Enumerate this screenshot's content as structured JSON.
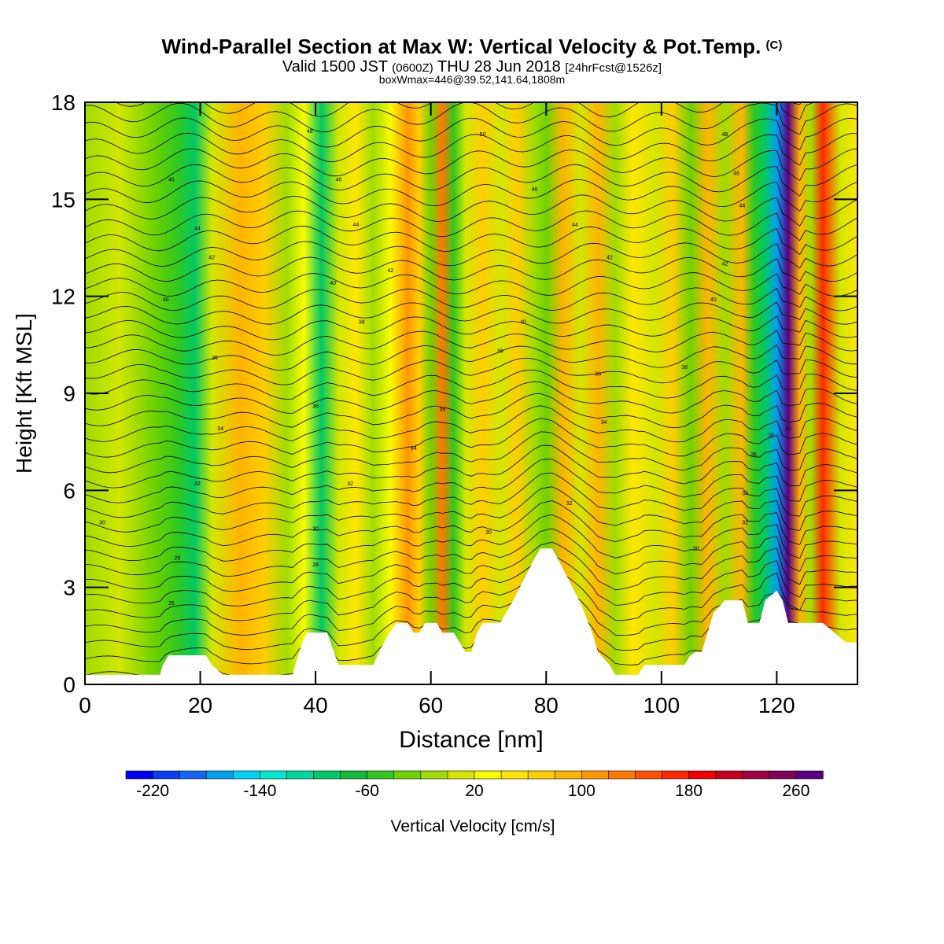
{
  "header": {
    "title": "Wind-Parallel Section at Max W: Vertical Velocity & Pot.Temp.",
    "title_mark": "(C)",
    "valid_prefix": "Valid 1500 JST",
    "valid_utc": "(0600Z)",
    "valid_date": "THU 28 Jun 2018",
    "forecast": "[24hrFcst@1526z]",
    "boxwmax": "boxWmax=446@39.52,141.64,1808m"
  },
  "chart_data": {
    "type": "heatmap",
    "xlabel": "Distance [nm]",
    "ylabel": "Height [Kft MSL]",
    "xlim": [
      0,
      134
    ],
    "ylim": [
      0,
      18
    ],
    "x_ticks": [
      0,
      20,
      40,
      60,
      80,
      100,
      120
    ],
    "y_ticks": [
      0,
      3,
      6,
      9,
      12,
      15,
      18
    ],
    "colorbar": {
      "label": "Vertical Velocity [cm/s]",
      "tick_labels": [
        "-220",
        "-140",
        "-60",
        "20",
        "100",
        "180",
        "260"
      ],
      "bin_colors": [
        "#0000f0",
        "#0a3cf5",
        "#1464f5",
        "#00a0f0",
        "#00d2f5",
        "#00e8d0",
        "#00d89a",
        "#00c864",
        "#14b83c",
        "#32c81e",
        "#6ed200",
        "#a0dc00",
        "#d2e600",
        "#fafa00",
        "#ffe600",
        "#ffcd00",
        "#ffb400",
        "#ff9600",
        "#ff7800",
        "#ff5000",
        "#ff2800",
        "#f00000",
        "#c80020",
        "#a00040",
        "#80005a",
        "#5a0082"
      ]
    },
    "field_profile": [
      {
        "x": 0,
        "w": -40
      },
      {
        "x": 6,
        "w": -20
      },
      {
        "x": 12,
        "w": -50
      },
      {
        "x": 16,
        "w": -70
      },
      {
        "x": 19,
        "w": -120
      },
      {
        "x": 22,
        "w": -20
      },
      {
        "x": 27,
        "w": 70
      },
      {
        "x": 31,
        "w": 40
      },
      {
        "x": 35,
        "w": -40
      },
      {
        "x": 38,
        "w": 10
      },
      {
        "x": 41,
        "w": -110
      },
      {
        "x": 44,
        "w": -20
      },
      {
        "x": 47,
        "w": 20
      },
      {
        "x": 50,
        "w": -40
      },
      {
        "x": 53,
        "w": 10
      },
      {
        "x": 56,
        "w": 90
      },
      {
        "x": 58,
        "w": 40
      },
      {
        "x": 60,
        "w": -50
      },
      {
        "x": 62,
        "w": 110
      },
      {
        "x": 64,
        "w": -70
      },
      {
        "x": 66,
        "w": -20
      },
      {
        "x": 69,
        "w": 50
      },
      {
        "x": 72,
        "w": -10
      },
      {
        "x": 75,
        "w": 40
      },
      {
        "x": 78,
        "w": -30
      },
      {
        "x": 80,
        "w": -60
      },
      {
        "x": 83,
        "w": 60
      },
      {
        "x": 86,
        "w": -10
      },
      {
        "x": 89,
        "w": 70
      },
      {
        "x": 92,
        "w": -40
      },
      {
        "x": 95,
        "w": 30
      },
      {
        "x": 99,
        "w": -20
      },
      {
        "x": 102,
        "w": 40
      },
      {
        "x": 105,
        "w": -50
      },
      {
        "x": 108,
        "w": 70
      },
      {
        "x": 111,
        "w": -40
      },
      {
        "x": 114,
        "w": 60
      },
      {
        "x": 116,
        "w": -80
      },
      {
        "x": 118,
        "w": -120
      },
      {
        "x": 120,
        "w": -190
      },
      {
        "x": 122,
        "w": 300
      },
      {
        "x": 124,
        "w": 60
      },
      {
        "x": 126,
        "w": -30
      },
      {
        "x": 128,
        "w": 140
      },
      {
        "x": 131,
        "w": -20
      },
      {
        "x": 134,
        "w": 20
      }
    ],
    "terrain": [
      {
        "x": 0,
        "h": 0.3
      },
      {
        "x": 13,
        "h": 0.3
      },
      {
        "x": 13.5,
        "h": 0.6
      },
      {
        "x": 14.5,
        "h": 0.9
      },
      {
        "x": 21,
        "h": 0.9
      },
      {
        "x": 22,
        "h": 0.6
      },
      {
        "x": 24,
        "h": 0.3
      },
      {
        "x": 36,
        "h": 0.3
      },
      {
        "x": 36.5,
        "h": 0.6
      },
      {
        "x": 37.5,
        "h": 1.2
      },
      {
        "x": 38.5,
        "h": 1.6
      },
      {
        "x": 42,
        "h": 1.6
      },
      {
        "x": 44,
        "h": 0.6
      },
      {
        "x": 50,
        "h": 0.6
      },
      {
        "x": 51,
        "h": 1.0
      },
      {
        "x": 52.5,
        "h": 1.5
      },
      {
        "x": 54,
        "h": 1.9
      },
      {
        "x": 56,
        "h": 1.9
      },
      {
        "x": 57,
        "h": 1.6
      },
      {
        "x": 58,
        "h": 1.6
      },
      {
        "x": 59,
        "h": 1.9
      },
      {
        "x": 61,
        "h": 1.9
      },
      {
        "x": 62,
        "h": 1.6
      },
      {
        "x": 64,
        "h": 1.6
      },
      {
        "x": 66,
        "h": 1.0
      },
      {
        "x": 67,
        "h": 1.0
      },
      {
        "x": 68,
        "h": 1.6
      },
      {
        "x": 69,
        "h": 1.9
      },
      {
        "x": 72,
        "h": 1.9
      },
      {
        "x": 74,
        "h": 2.5
      },
      {
        "x": 76,
        "h": 3.2
      },
      {
        "x": 78,
        "h": 3.9
      },
      {
        "x": 79,
        "h": 4.2
      },
      {
        "x": 81,
        "h": 4.2
      },
      {
        "x": 82,
        "h": 3.9
      },
      {
        "x": 84,
        "h": 3.2
      },
      {
        "x": 86,
        "h": 2.5
      },
      {
        "x": 88,
        "h": 1.6
      },
      {
        "x": 89,
        "h": 1.0
      },
      {
        "x": 91,
        "h": 0.6
      },
      {
        "x": 92,
        "h": 0.3
      },
      {
        "x": 96,
        "h": 0.3
      },
      {
        "x": 97,
        "h": 0.6
      },
      {
        "x": 104,
        "h": 0.6
      },
      {
        "x": 105,
        "h": 0.9
      },
      {
        "x": 106,
        "h": 1.0
      },
      {
        "x": 107,
        "h": 1.0
      },
      {
        "x": 108,
        "h": 1.6
      },
      {
        "x": 109,
        "h": 2.2
      },
      {
        "x": 111,
        "h": 2.6
      },
      {
        "x": 114,
        "h": 2.6
      },
      {
        "x": 115,
        "h": 1.9
      },
      {
        "x": 117,
        "h": 1.9
      },
      {
        "x": 118,
        "h": 2.6
      },
      {
        "x": 120,
        "h": 2.9
      },
      {
        "x": 121,
        "h": 2.6
      },
      {
        "x": 122,
        "h": 1.9
      },
      {
        "x": 128,
        "h": 1.9
      },
      {
        "x": 130,
        "h": 1.6
      },
      {
        "x": 132,
        "h": 1.3
      },
      {
        "x": 134,
        "h": 1.3
      }
    ],
    "contour_labels": [
      {
        "x": 3,
        "y": 5.0,
        "text": "30"
      },
      {
        "x": 16,
        "y": 3.9,
        "text": "28"
      },
      {
        "x": 15,
        "y": 2.5,
        "text": "26"
      },
      {
        "x": 19.5,
        "y": 6.2,
        "text": "32"
      },
      {
        "x": 23.5,
        "y": 7.9,
        "text": "34"
      },
      {
        "x": 22.5,
        "y": 10.1,
        "text": "36"
      },
      {
        "x": 14,
        "y": 11.9,
        "text": "40"
      },
      {
        "x": 22,
        "y": 13.2,
        "text": "42"
      },
      {
        "x": 19.5,
        "y": 14.1,
        "text": "44"
      },
      {
        "x": 15,
        "y": 15.6,
        "text": "46"
      },
      {
        "x": 39,
        "y": 17.1,
        "text": "48"
      },
      {
        "x": 44,
        "y": 15.6,
        "text": "46"
      },
      {
        "x": 47,
        "y": 14.2,
        "text": "44"
      },
      {
        "x": 43,
        "y": 12.4,
        "text": "40"
      },
      {
        "x": 53,
        "y": 12.8,
        "text": "42"
      },
      {
        "x": 48,
        "y": 11.2,
        "text": "38"
      },
      {
        "x": 40,
        "y": 8.6,
        "text": "36"
      },
      {
        "x": 46,
        "y": 6.2,
        "text": "32"
      },
      {
        "x": 40,
        "y": 4.8,
        "text": "30"
      },
      {
        "x": 40,
        "y": 3.7,
        "text": "28"
      },
      {
        "x": 57,
        "y": 7.3,
        "text": "34"
      },
      {
        "x": 62,
        "y": 8.5,
        "text": "36"
      },
      {
        "x": 69,
        "y": 17.0,
        "text": "50"
      },
      {
        "x": 78,
        "y": 15.3,
        "text": "46"
      },
      {
        "x": 85,
        "y": 14.2,
        "text": "44"
      },
      {
        "x": 76,
        "y": 11.2,
        "text": "40"
      },
      {
        "x": 72,
        "y": 10.3,
        "text": "38"
      },
      {
        "x": 91,
        "y": 13.2,
        "text": "42"
      },
      {
        "x": 89,
        "y": 9.6,
        "text": "36"
      },
      {
        "x": 90,
        "y": 8.1,
        "text": "34"
      },
      {
        "x": 84,
        "y": 5.6,
        "text": "32"
      },
      {
        "x": 70,
        "y": 4.7,
        "text": "30"
      },
      {
        "x": 104,
        "y": 9.8,
        "text": "38"
      },
      {
        "x": 106,
        "y": 4.2,
        "text": "30"
      },
      {
        "x": 109,
        "y": 11.9,
        "text": "40"
      },
      {
        "x": 111,
        "y": 17.0,
        "text": "48"
      },
      {
        "x": 111,
        "y": 13.0,
        "text": "42"
      },
      {
        "x": 113,
        "y": 15.8,
        "text": "46"
      },
      {
        "x": 114,
        "y": 14.8,
        "text": "44"
      },
      {
        "x": 114.5,
        "y": 5.9,
        "text": "34"
      },
      {
        "x": 116,
        "y": 7.1,
        "text": "36"
      },
      {
        "x": 114.5,
        "y": 5.0,
        "text": "32"
      },
      {
        "x": 119,
        "y": 7.7,
        "text": "38"
      },
      {
        "x": 122,
        "y": 7.9,
        "text": "42"
      }
    ]
  }
}
